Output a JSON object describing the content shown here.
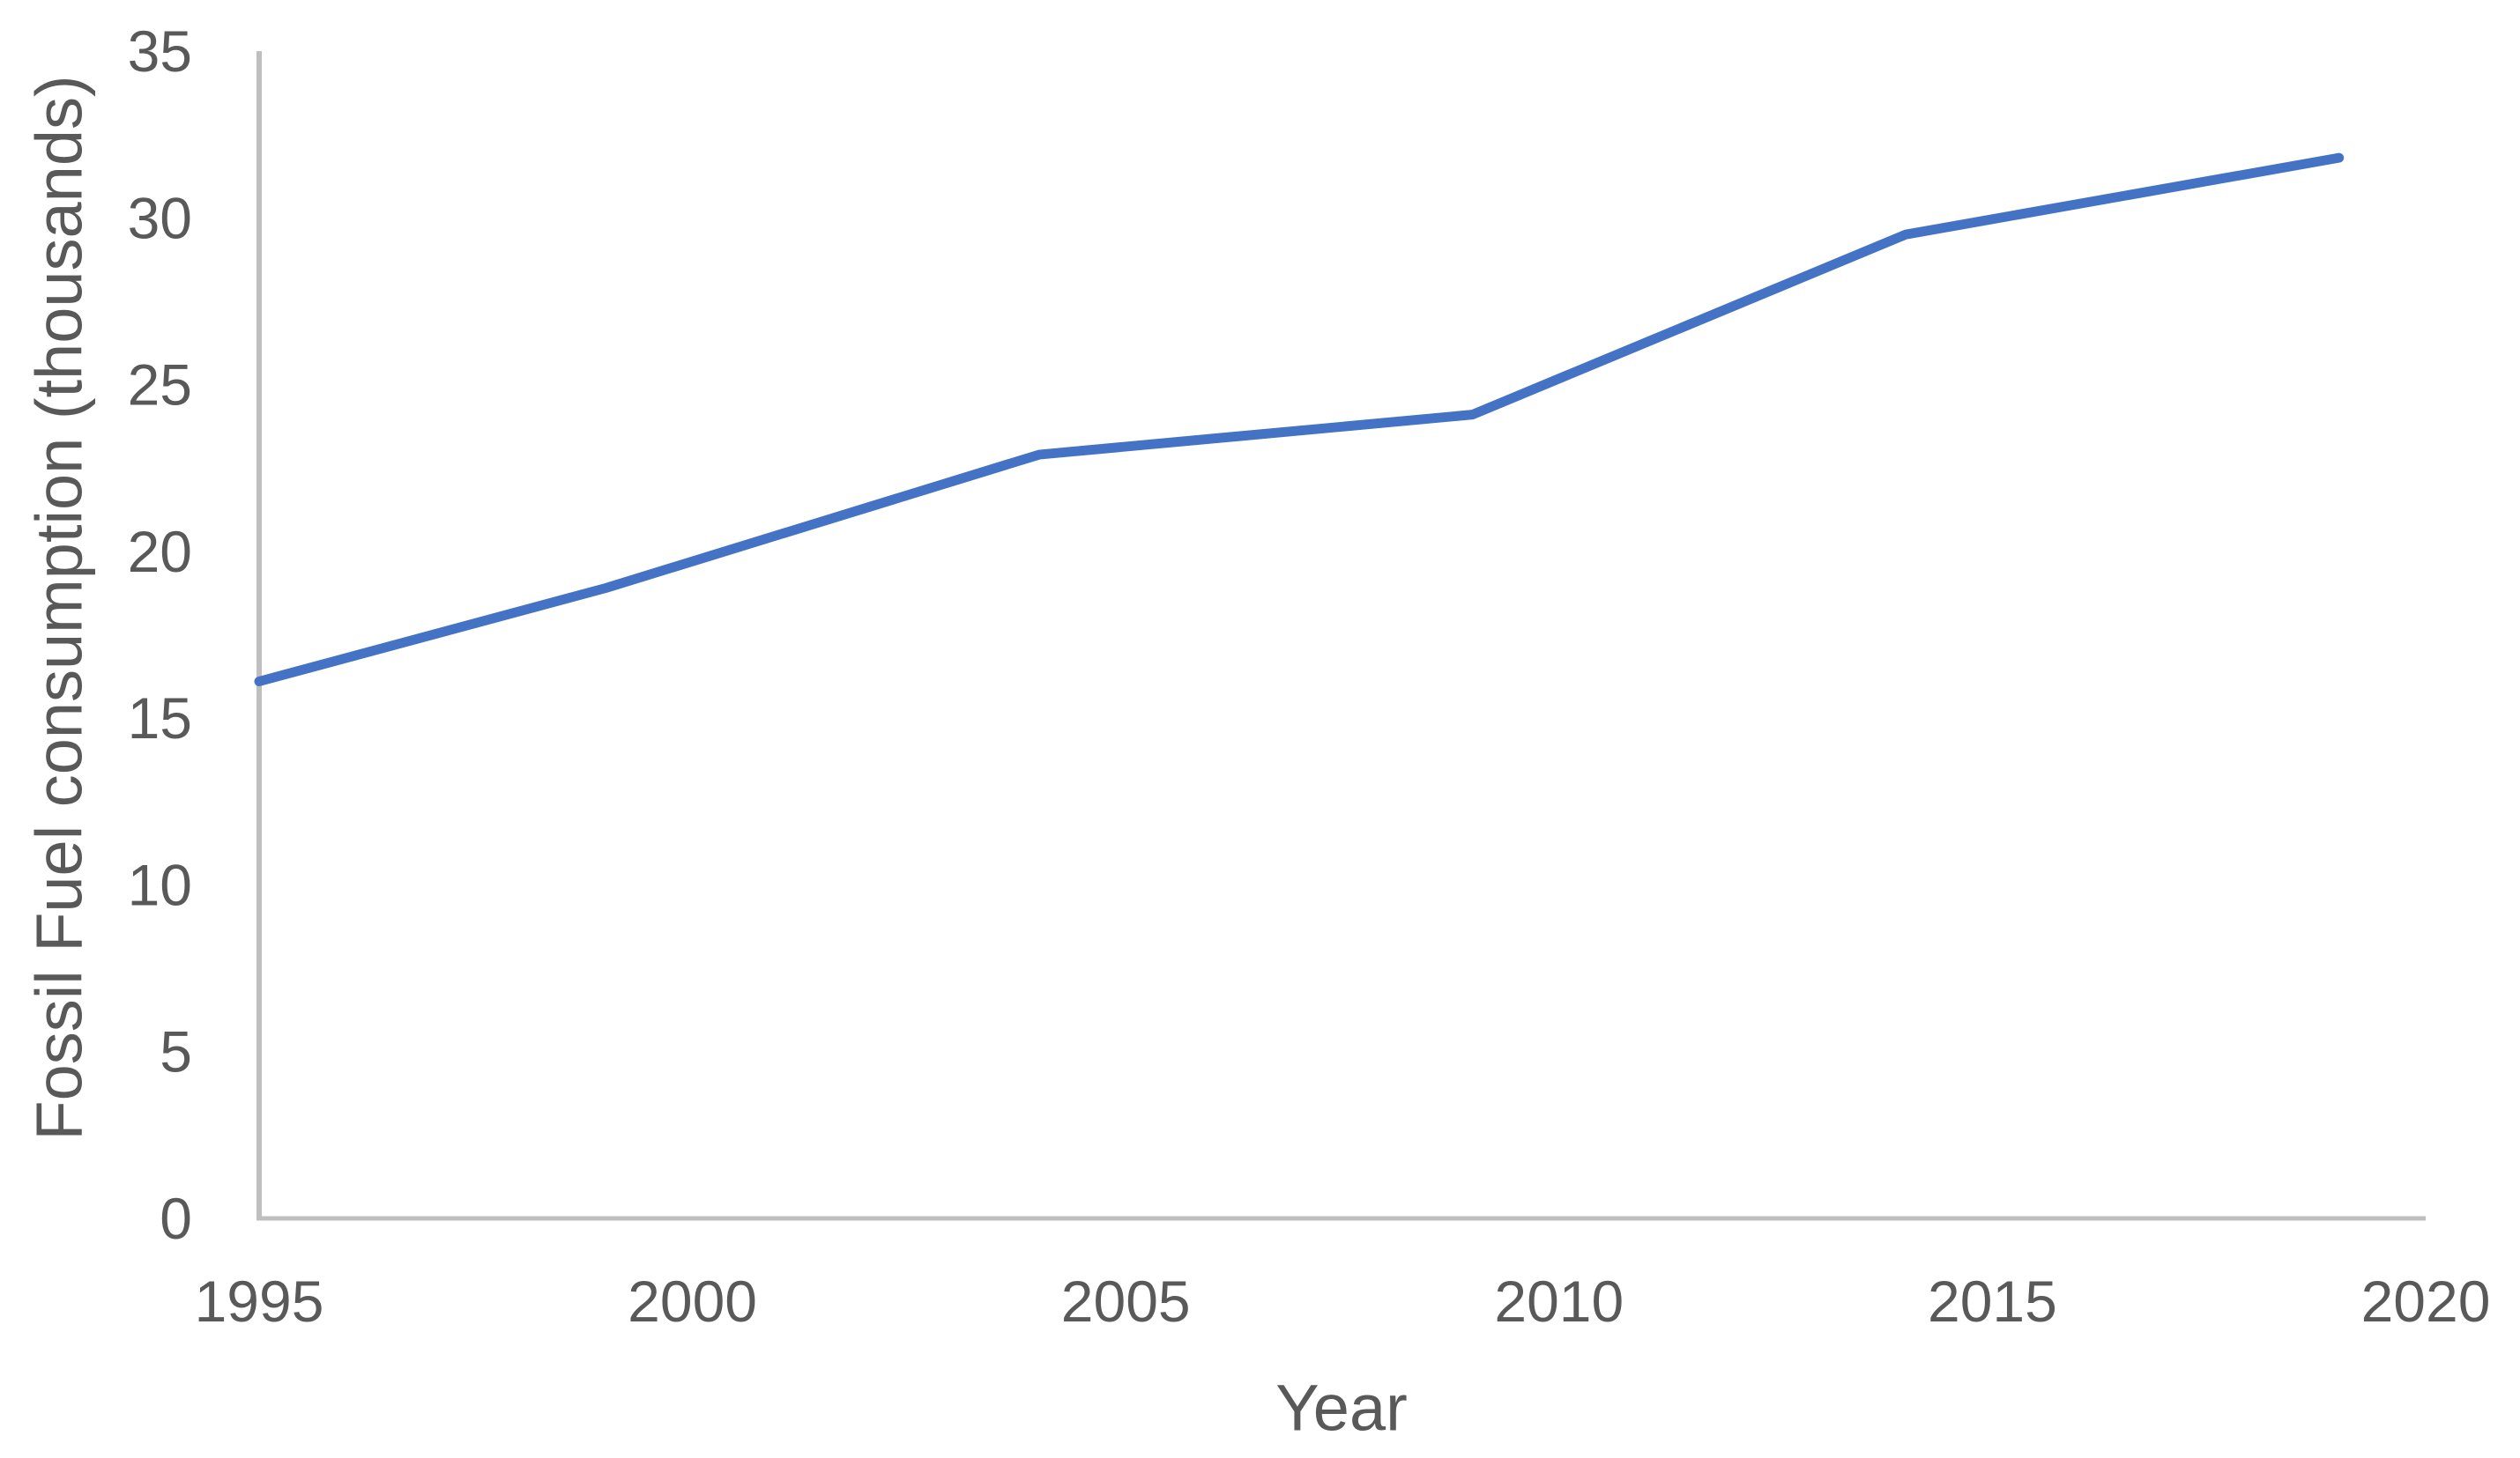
{
  "chart_data": {
    "type": "line",
    "x": [
      1995,
      1999,
      2004,
      2009,
      2014,
      2019
    ],
    "values": [
      16.1,
      18.9,
      22.9,
      24.1,
      29.5,
      31.8
    ],
    "xlabel": "Year",
    "ylabel": "Fossil Fuel consumption (thousands)",
    "xlim": [
      1995,
      2020
    ],
    "ylim": [
      0,
      35
    ],
    "xticks": [
      "1995",
      "2000",
      "2005",
      "2010",
      "2015",
      "2020"
    ],
    "xtick_values": [
      1995,
      2000,
      2005,
      2010,
      2015,
      2020
    ],
    "yticks": [
      "0",
      "5",
      "10",
      "15",
      "20",
      "25",
      "30",
      "35"
    ],
    "ytick_values": [
      0,
      5,
      10,
      15,
      20,
      25,
      30,
      35
    ],
    "grid": false,
    "legend": false,
    "line_color": "#4472C4",
    "axis_color": "#BFBFBF",
    "text_color": "#595959"
  }
}
